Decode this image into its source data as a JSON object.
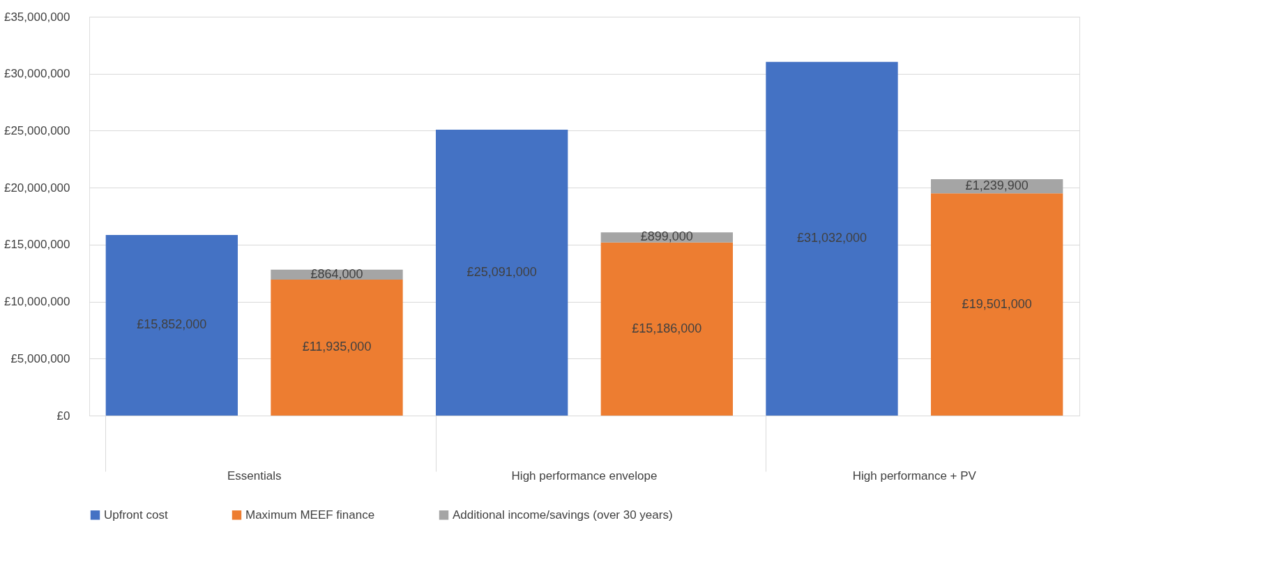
{
  "chart_data": {
    "type": "bar",
    "stacked": true,
    "categories": [
      "Essentials",
      null,
      "High performance envelope",
      null,
      "High performance + PV",
      null
    ],
    "series": [
      {
        "name": "Upfront cost",
        "color": "#4472c4",
        "values": [
          15852000,
          null,
          25091000,
          null,
          31032000,
          null
        ]
      },
      {
        "name": "Maximum MEEF finance",
        "color": "#ed7d31",
        "values": [
          null,
          11935000,
          null,
          15186000,
          null,
          19501000
        ]
      },
      {
        "name": "Additional income/savings (over 30 years)",
        "color": "#a5a5a5",
        "values": [
          null,
          864000,
          null,
          899000,
          null,
          1239900
        ]
      }
    ],
    "value_labels": [
      [
        "£15,852,000",
        null,
        "£25,091,000",
        null,
        "£31,032,000",
        null
      ],
      [
        null,
        "£11,935,000",
        null,
        "£15,186,000",
        null,
        "£19,501,000"
      ],
      [
        null,
        "£864,000",
        null,
        "£899,000",
        null,
        "£1,239,900"
      ]
    ],
    "ylim": [
      0,
      35000000
    ],
    "yticks": [
      {
        "value": 0,
        "label": "£0"
      },
      {
        "value": 5000000,
        "label": "£5,000,000"
      },
      {
        "value": 10000000,
        "label": "£10,000,000"
      },
      {
        "value": 15000000,
        "label": "£15,000,000"
      },
      {
        "value": 20000000,
        "label": "£20,000,000"
      },
      {
        "value": 25000000,
        "label": "£25,000,000"
      },
      {
        "value": 30000000,
        "label": "£30,000,000"
      },
      {
        "value": 35000000,
        "label": "£35,000,000"
      }
    ],
    "grid": "y",
    "legend": "bottom"
  }
}
